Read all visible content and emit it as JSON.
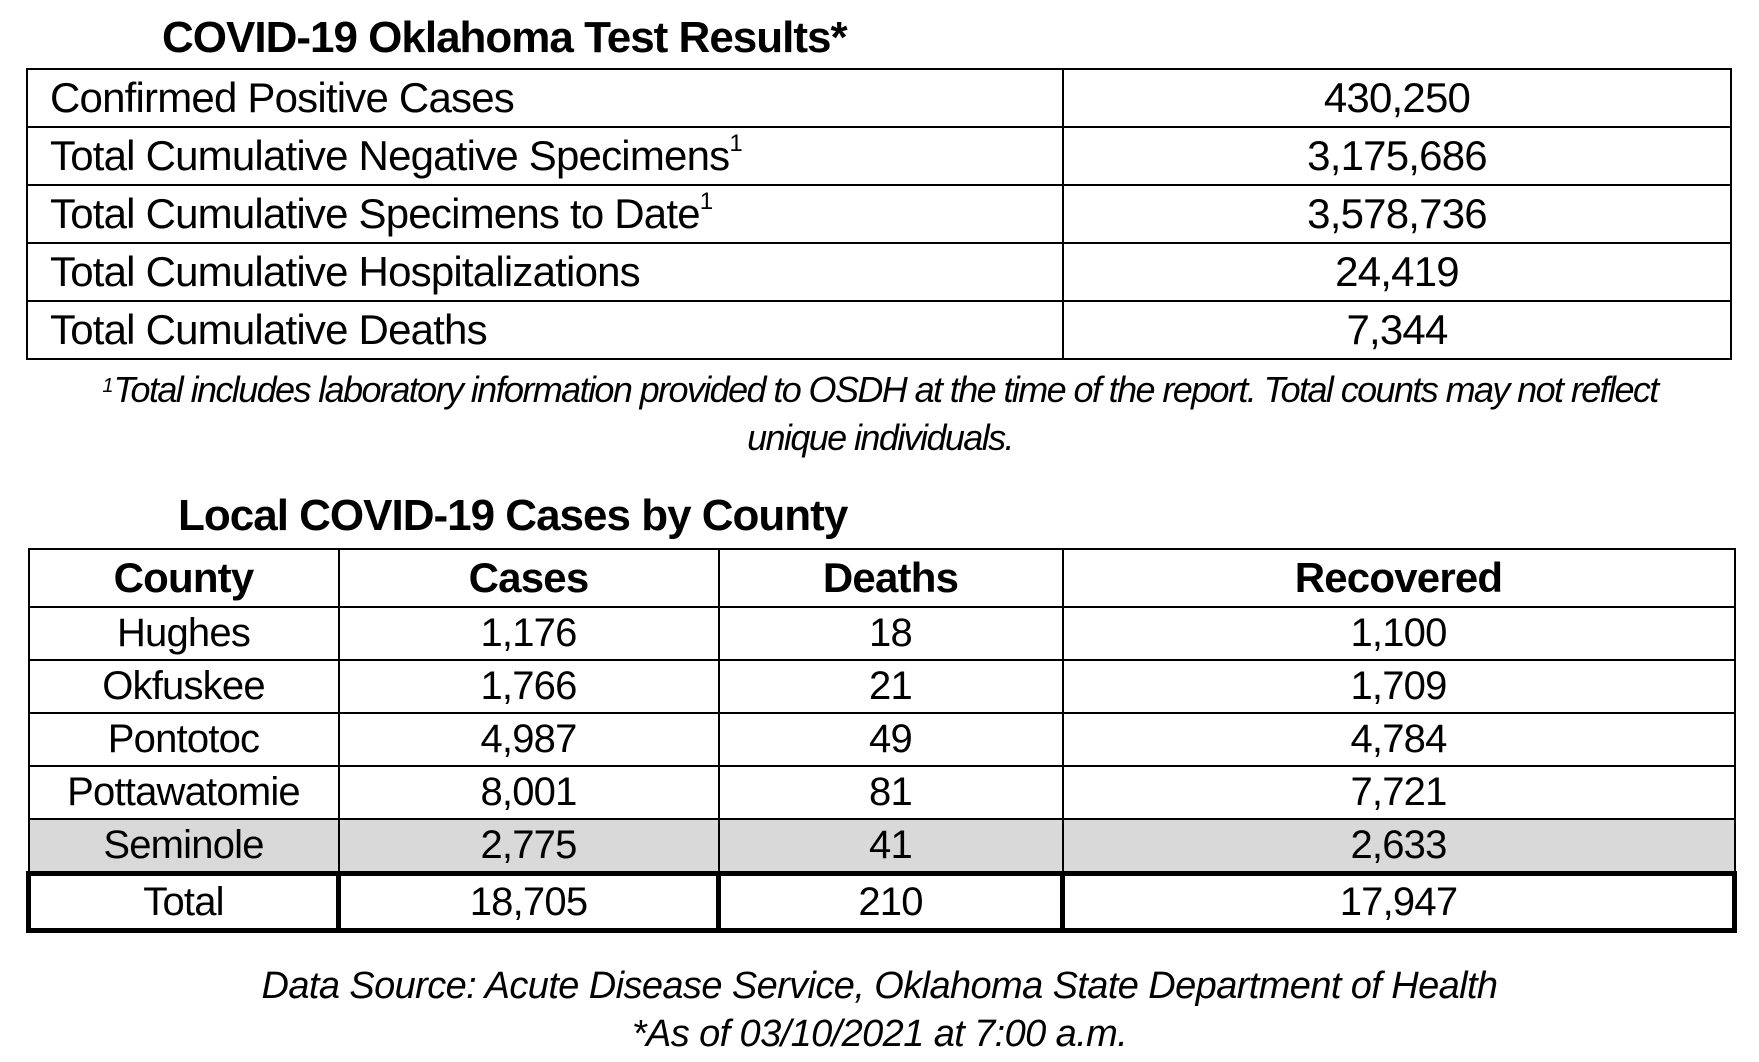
{
  "test_results": {
    "title": "COVID-19 Oklahoma Test Results*",
    "rows": [
      {
        "label": "Confirmed Positive Cases",
        "sup": "",
        "value": "430,250"
      },
      {
        "label": "Total Cumulative Negative Specimens",
        "sup": "1",
        "value": "3,175,686"
      },
      {
        "label": "Total Cumulative Specimens to Date",
        "sup": "1",
        "value": "3,578,736"
      },
      {
        "label": "Total Cumulative Hospitalizations",
        "sup": "",
        "value": "24,419"
      },
      {
        "label": "Total Cumulative Deaths",
        "sup": "",
        "value": "7,344"
      }
    ],
    "footnote_mark": "1",
    "footnote_text": "Total includes laboratory information provided to OSDH at the time of the report. Total counts may not reflect unique individuals."
  },
  "county_table": {
    "title": "Local COVID-19 Cases by County",
    "headers": [
      "County",
      "Cases",
      "Deaths",
      "Recovered"
    ],
    "rows": [
      [
        "Hughes",
        "1,176",
        "18",
        "1,100"
      ],
      [
        "Okfuskee",
        "1,766",
        "21",
        "1,709"
      ],
      [
        "Pontotoc",
        "4,987",
        "49",
        "4,784"
      ],
      [
        "Pottawatomie",
        "8,001",
        "81",
        "7,721"
      ],
      [
        "Seminole",
        "2,775",
        "41",
        "2,633"
      ]
    ],
    "total": [
      "Total",
      "18,705",
      "210",
      "17,947"
    ],
    "shaded_row_color": "#d9d9d9"
  },
  "source": {
    "line1": "Data Source: Acute Disease Service, Oklahoma State Department of Health",
    "line2": "*As of 03/10/2021 at 7:00 a.m."
  }
}
